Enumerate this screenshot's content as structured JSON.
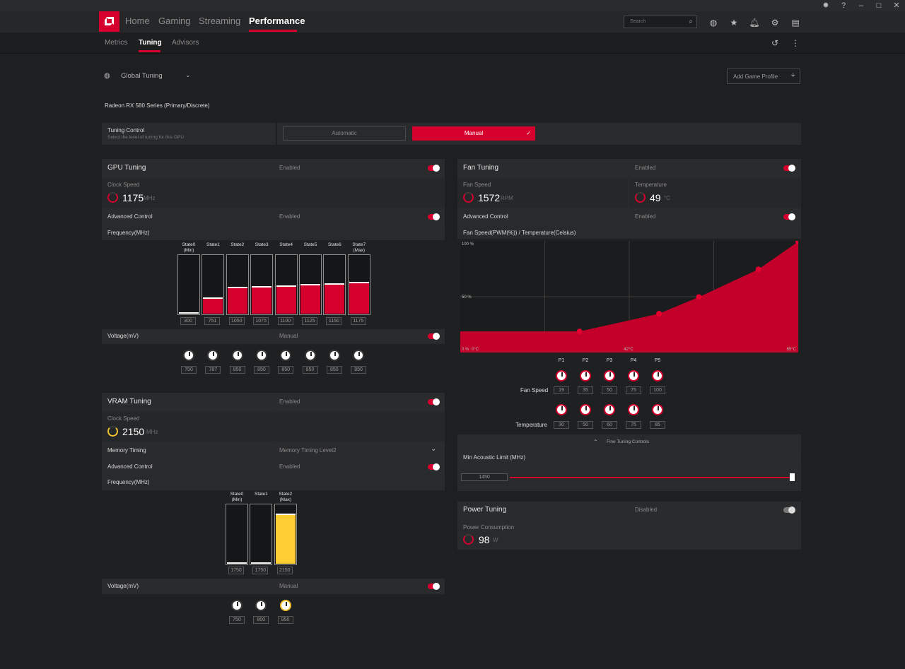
{
  "nav": {
    "tabs": [
      "Home",
      "Gaming",
      "Streaming",
      "Performance"
    ],
    "active": "Performance",
    "search_placeholder": "Search"
  },
  "subnav": {
    "tabs": [
      "Metrics",
      "Tuning",
      "Advisors"
    ],
    "active": "Tuning"
  },
  "profile": {
    "label": "Global Tuning",
    "add_game_profile": "Add Game Profile"
  },
  "gpu_name": "Radeon RX 580 Series (Primary/Discrete)",
  "tuning_control": {
    "title": "Tuning Control",
    "subtitle": "Select the level of tuning for this GPU",
    "automatic": "Automatic",
    "manual": "Manual"
  },
  "gpu_tuning": {
    "title": "GPU Tuning",
    "status": "Enabled",
    "clock_label": "Clock Speed",
    "clock_value": "1175",
    "clock_unit": "MHz",
    "advanced_label": "Advanced Control",
    "advanced_status": "Enabled",
    "freq_label": "Frequency(MHz)",
    "states": [
      "State0 (Min)",
      "State1",
      "State2",
      "State3",
      "State4",
      "State5",
      "State6",
      "State7 (Max)"
    ],
    "freq_values": [
      "300",
      "751",
      "1050",
      "1075",
      "1100",
      "1125",
      "1150",
      "1175"
    ],
    "freq_levels": [
      0.02,
      0.27,
      0.45,
      0.46,
      0.48,
      0.5,
      0.51,
      0.53
    ],
    "voltage_label": "Voltage(mV)",
    "voltage_status": "Manual",
    "voltage_values": [
      "750",
      "787",
      "850",
      "850",
      "850",
      "850",
      "850",
      "850"
    ]
  },
  "vram_tuning": {
    "title": "VRAM Tuning",
    "status": "Enabled",
    "clock_label": "Clock Speed",
    "clock_value": "2150",
    "clock_unit": "MHz",
    "memory_timing_label": "Memory Timing",
    "memory_timing_value": "Memory Timing Level2",
    "advanced_label": "Advanced Control",
    "advanced_status": "Enabled",
    "freq_label": "Frequency(MHz)",
    "states": [
      "State0 (Min)",
      "State1",
      "State2 (Max)"
    ],
    "freq_values": [
      "1750",
      "1750",
      "2150"
    ],
    "freq_levels": [
      0.0,
      0.0,
      0.83
    ],
    "voltage_label": "Voltage(mV)",
    "voltage_status": "Manual",
    "voltage_values": [
      "750",
      "800",
      "950"
    ]
  },
  "fan_tuning": {
    "title": "Fan Tuning",
    "status": "Enabled",
    "fan_speed_label": "Fan Speed",
    "fan_speed_value": "1572",
    "fan_speed_unit": "RPM",
    "temp_label": "Temperature",
    "temp_value": "49",
    "temp_unit": "°C",
    "advanced_label": "Advanced Control",
    "advanced_status": "Enabled",
    "curve_label": "Fan Speed(PWM(%)) / Temperature(Celsius)",
    "y_ticks": [
      "100 %",
      "50 %",
      "0 %"
    ],
    "x_ticks": [
      "0°C",
      "42°C",
      "85°C"
    ],
    "points": [
      "P1",
      "P2",
      "P3",
      "P4",
      "P5"
    ],
    "row_fan": "Fan Speed",
    "row_temp": "Temperature",
    "fan_values": [
      "19",
      "35",
      "50",
      "75",
      "100"
    ],
    "temp_values": [
      "30",
      "50",
      "60",
      "75",
      "85"
    ],
    "fine_tuning": "Fine Tuning Controls",
    "acoustic_label": "Min Acoustic Limit (MHz)",
    "acoustic_value": "1450"
  },
  "power_tuning": {
    "title": "Power Tuning",
    "status": "Disabled",
    "consumption_label": "Power Consumption",
    "consumption_value": "98",
    "consumption_unit": "W"
  },
  "chart_data": {
    "type": "area",
    "x": [
      30,
      50,
      60,
      75,
      85
    ],
    "y": [
      19,
      35,
      50,
      75,
      100
    ],
    "xlim": [
      0,
      85
    ],
    "ylim": [
      0,
      100
    ],
    "title": "Fan Speed(PWM(%)) / Temperature(Celsius)",
    "xlabel": "",
    "ylabel": "",
    "grid": true,
    "colors": {
      "fill": "#c3002a",
      "point": "#e4002f"
    }
  },
  "colors": {
    "accent": "#d6002f",
    "vram": "#ffce33"
  }
}
